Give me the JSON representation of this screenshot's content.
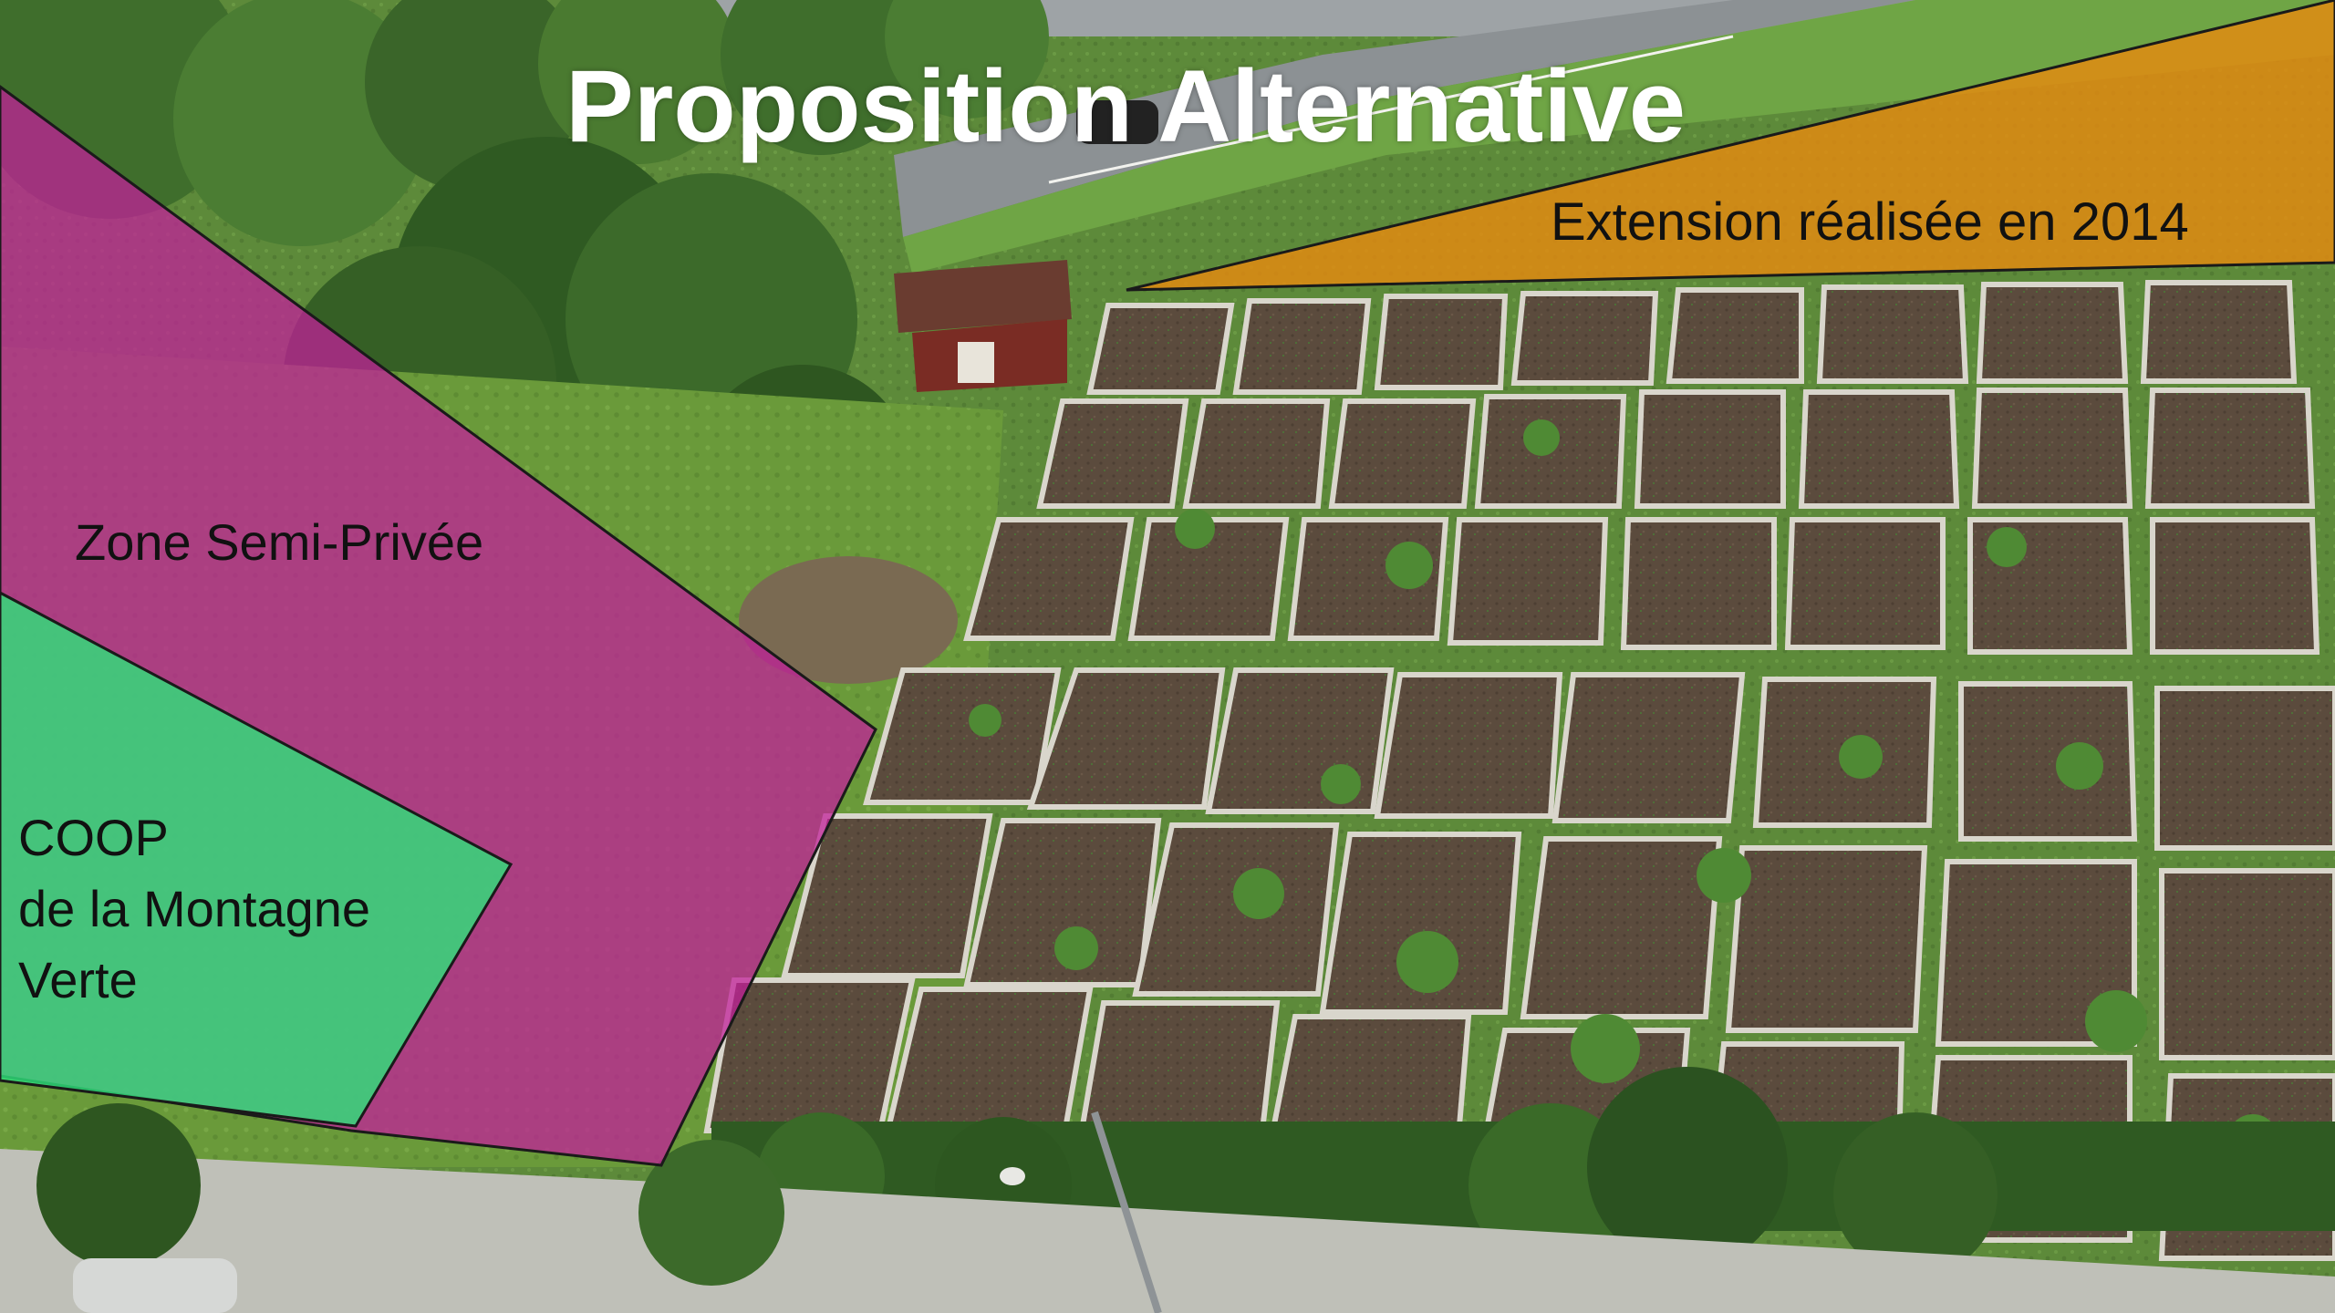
{
  "slide": {
    "title": "Proposition Alternative",
    "zones": {
      "extension": {
        "label": "Extension réalisée en 2014",
        "color": "#e58a10"
      },
      "semi_private": {
        "label": "Zone Semi-Privée",
        "color": "#c21f9a"
      },
      "coop": {
        "lines": [
          "COOP",
          "de la Montagne",
          "Verte"
        ],
        "color": "#2ee07a"
      }
    }
  },
  "colors": {
    "grass": "#5f8a3c",
    "soil": "#5a4a3c",
    "tree": "#3d6b2b",
    "bed_frame": "#d9d6cc"
  }
}
